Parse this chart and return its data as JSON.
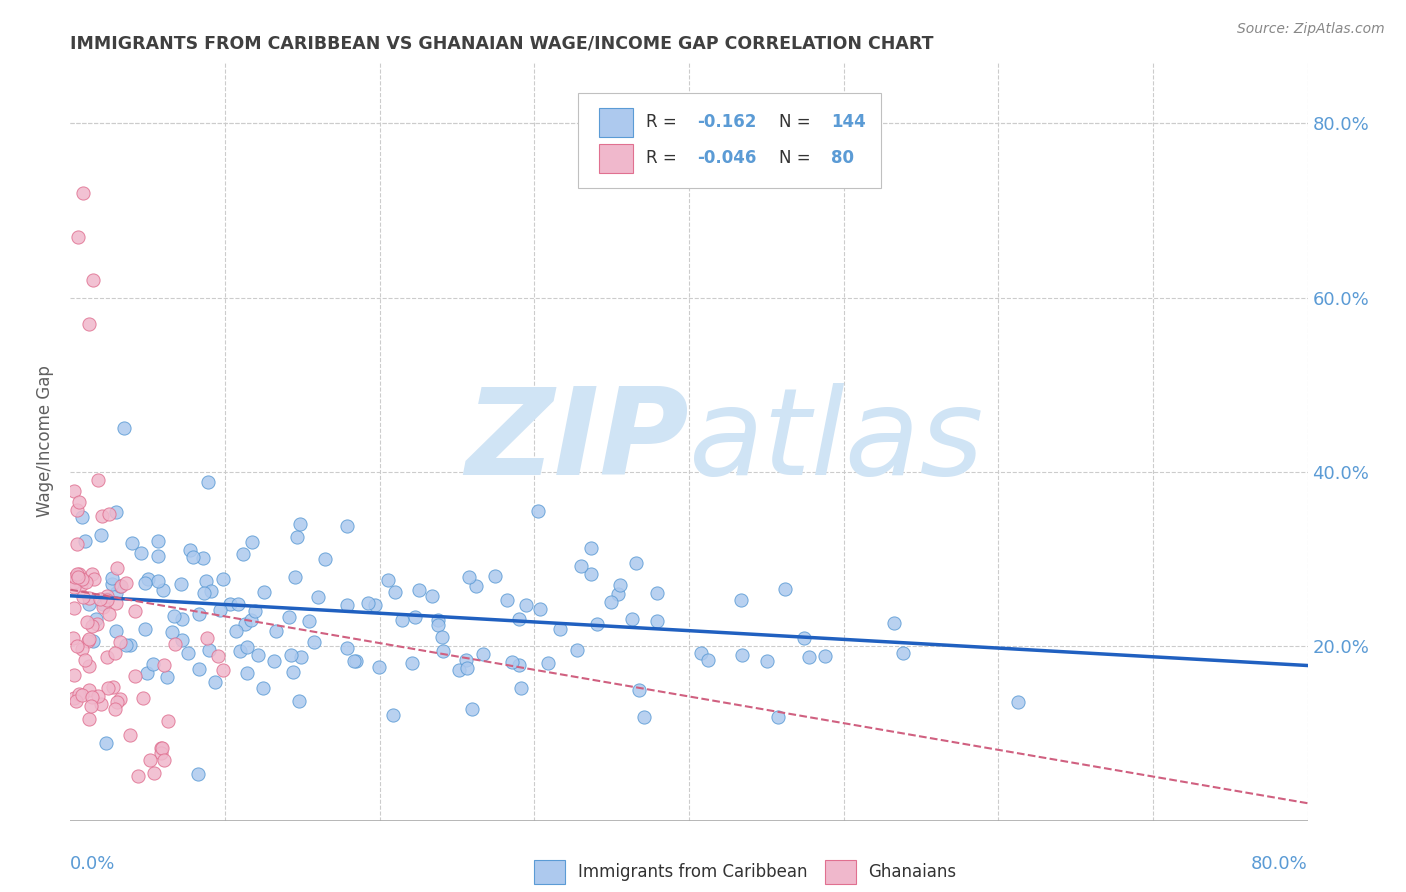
{
  "title": "IMMIGRANTS FROM CARIBBEAN VS GHANAIAN WAGE/INCOME GAP CORRELATION CHART",
  "source": "Source: ZipAtlas.com",
  "ylabel": "Wage/Income Gap",
  "ytick_values": [
    0.2,
    0.4,
    0.6,
    0.8
  ],
  "xmin": 0.0,
  "xmax": 0.8,
  "ymin": 0.0,
  "ymax": 0.87,
  "blue_color": "#adc9ee",
  "pink_color": "#f0b8cc",
  "blue_edge_color": "#5b9bd5",
  "pink_edge_color": "#e07090",
  "blue_line_color": "#2060c0",
  "pink_line_color": "#d06080",
  "title_color": "#404040",
  "axis_label_color": "#5b9bd5",
  "watermark_color": "#d0e4f5",
  "grid_color": "#cccccc",
  "legend_r1_val": "-0.162",
  "legend_n1_val": "144",
  "legend_r2_val": "-0.046",
  "legend_n2_val": "80",
  "blue_trend_y0": 0.258,
  "blue_trend_y1": 0.178,
  "pink_trend_y0": 0.265,
  "pink_trend_y1": 0.02
}
